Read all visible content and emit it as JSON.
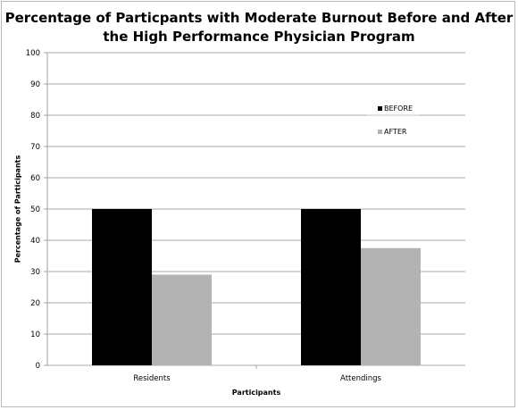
{
  "chart_data": {
    "type": "bar",
    "title": "Percentage of Particpants with Moderate Burnout Before and After the High Performance Physician Program",
    "title_lines": [
      "Percentage of Particpants with Moderate Burnout Before and After",
      "the High Performance Physician Program"
    ],
    "xlabel": "Participants",
    "ylabel": "Percentage of Participants",
    "categories": [
      "Residents",
      "Attendings"
    ],
    "series": [
      {
        "name": "BEFORE",
        "values": [
          50,
          50
        ],
        "color": "#000000"
      },
      {
        "name": "AFTER",
        "values": [
          29,
          37.5
        ],
        "color": "#b3b3b3"
      }
    ],
    "ylim": [
      0,
      100
    ],
    "yticks": [
      0,
      10,
      20,
      30,
      40,
      50,
      60,
      70,
      80,
      90,
      100
    ],
    "grid": true,
    "legend_position": "top-right"
  }
}
